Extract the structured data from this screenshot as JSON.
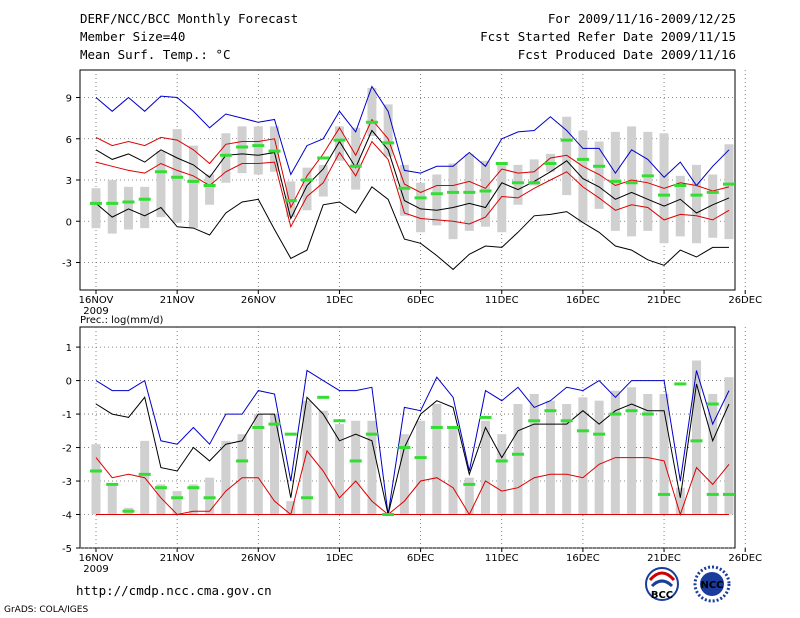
{
  "header": {
    "title": "DERF/NCC/BCC Monthly Forecast",
    "member_size": "Member Size=40",
    "variable": "Mean Surf. Temp.: °C",
    "period": "For 2009/11/16-2009/12/25",
    "start_date": "Fcst Started Refer Date 2009/11/15",
    "produced_date": "Fcst Produced Date 2009/11/16"
  },
  "footer": {
    "url": "http://cmdp.ncc.cma.gov.cn",
    "credit": "GrADS: COLA/IGES",
    "logo_bcc": "BCC",
    "logo_ncc": "NCC"
  },
  "colors": {
    "max_line": "#0000cc",
    "p_line": "#dd0000",
    "median_line": "#000000",
    "bar": "#d0d0d0",
    "marker": "#33dd33",
    "grid": "#666666"
  },
  "chart_data": [
    {
      "type": "line",
      "title": "Mean Surf. Temp.: °C",
      "x_tick_labels": [
        "16NOV",
        "21NOV",
        "26NOV",
        "1DEC",
        "6DEC",
        "11DEC",
        "16DEC",
        "21DEC",
        "26DEC"
      ],
      "year_label": "2009",
      "ylim": [
        -5,
        11
      ],
      "y_ticks": [
        -3,
        0,
        3,
        6,
        9
      ],
      "days": 40,
      "series": [
        {
          "name": "max",
          "values": [
            9,
            8,
            9,
            8,
            9.1,
            9,
            8,
            6.8,
            7.8,
            7.5,
            7.2,
            7.4,
            3.4,
            5.5,
            6,
            8,
            6.5,
            9.8,
            8,
            3.7,
            3.5,
            4,
            4,
            5,
            4,
            6,
            6.5,
            6.6,
            7.6,
            6.6,
            5.3,
            5.3,
            3.5,
            5.2,
            4.5,
            3.2,
            4.3,
            2.6,
            4,
            5.2
          ]
        },
        {
          "name": "upper_p",
          "values": [
            6.1,
            5.5,
            5.8,
            5.5,
            6.1,
            5.9,
            5.2,
            4.2,
            5.6,
            5.8,
            5.8,
            6,
            1,
            3.3,
            4.9,
            6.8,
            4.8,
            7.4,
            6,
            2.7,
            2.1,
            2.6,
            2.6,
            2.9,
            2.4,
            3.8,
            3.5,
            3.6,
            4.6,
            4.8,
            4,
            3.4,
            2.6,
            3,
            2.8,
            2.4,
            2.8,
            2.6,
            2.2,
            2.5
          ]
        },
        {
          "name": "median",
          "values": [
            5.2,
            4.5,
            4.9,
            4.3,
            5.2,
            4.6,
            4.1,
            3.2,
            4.8,
            4.9,
            4.8,
            5,
            0.2,
            2.6,
            3.8,
            5.8,
            3.9,
            6.6,
            5.2,
            1.5,
            0.9,
            0.8,
            1,
            1.3,
            1,
            2.8,
            2.3,
            2.9,
            3.6,
            4.4,
            3.1,
            2.5,
            1.6,
            2.1,
            1.6,
            1.1,
            1.6,
            0.6,
            1.2,
            1.7
          ]
        },
        {
          "name": "lower_p",
          "values": [
            4.3,
            4,
            3.7,
            3.5,
            4.2,
            3.7,
            3.3,
            2.6,
            3.6,
            4.2,
            4.2,
            4.3,
            -0.4,
            1.8,
            2.8,
            5,
            3.3,
            5.8,
            4.5,
            0.6,
            0.2,
            0.1,
            0,
            -0.2,
            0.3,
            1.8,
            1.7,
            2.4,
            3,
            3.6,
            2.5,
            1.7,
            0.8,
            1.2,
            1,
            0.1,
            0.5,
            0.4,
            0.1,
            0.8
          ]
        },
        {
          "name": "min",
          "values": [
            1.3,
            0.3,
            0.9,
            0.4,
            1,
            -0.4,
            -0.5,
            -1,
            0.6,
            1.4,
            1.6,
            -0.6,
            -2.7,
            -2.1,
            1.2,
            1.4,
            0.6,
            2.5,
            1.6,
            -1.3,
            -1.6,
            -2.5,
            -3.5,
            -2.4,
            -1.8,
            -1.9,
            -0.8,
            0.4,
            0.5,
            0.7,
            -0.1,
            -0.8,
            -1.8,
            -2.1,
            -2.8,
            -3.2,
            -2.1,
            -2.6,
            -1.9,
            -1.9
          ]
        }
      ],
      "bars": {
        "low": [
          -0.5,
          -0.9,
          -0.6,
          -0.5,
          0.3,
          -0.1,
          -0.5,
          1.2,
          2.8,
          3.5,
          3.4,
          3.6,
          0.3,
          0.8,
          1.8,
          4.4,
          2.3,
          6.2,
          4.7,
          0.4,
          -0.8,
          -0.3,
          -1.3,
          -0.7,
          -0.4,
          -0.8,
          1.2,
          2.6,
          3.6,
          1.9,
          -0.1,
          0.9,
          -0.7,
          -1.1,
          -0.7,
          -1.6,
          -1.1,
          -1.6,
          -1.2,
          -1.3
        ],
        "high": [
          2.4,
          3,
          2.5,
          2.5,
          5.1,
          6.7,
          5.5,
          3.4,
          6.4,
          6.9,
          6.9,
          6.9,
          2.9,
          3.9,
          4.1,
          6.9,
          6.8,
          9.7,
          8.5,
          4.1,
          2.8,
          3.4,
          4.2,
          4.9,
          4.4,
          4.3,
          4.1,
          4.5,
          4.9,
          7.6,
          6.6,
          5.8,
          6.5,
          6.9,
          6.5,
          6.4,
          3.3,
          4.1,
          3.4,
          5.6
        ]
      },
      "markers": [
        1.3,
        1.3,
        1.4,
        1.6,
        3.6,
        3.2,
        2.9,
        2.6,
        4.8,
        5.4,
        5.5,
        5.1,
        1.5,
        3,
        4.6,
        5.9,
        4,
        7.2,
        5.7,
        2.4,
        1.7,
        2,
        2.1,
        2.1,
        2.2,
        4.2,
        2.8,
        2.8,
        4.2,
        5.9,
        4.5,
        4,
        2.9,
        2.8,
        3.3,
        1.9,
        2.6,
        1.9,
        2.1,
        2.7
      ]
    },
    {
      "type": "line",
      "title": "Prec.: log(mm/d)",
      "x_tick_labels": [
        "16NOV",
        "21NOV",
        "26NOV",
        "1DEC",
        "6DEC",
        "11DEC",
        "16DEC",
        "21DEC",
        "26DEC"
      ],
      "year_label": "2009",
      "ylim": [
        -5,
        1.6
      ],
      "y_ticks": [
        -5,
        -4,
        -3,
        -2,
        -1,
        0,
        1
      ],
      "days": 40,
      "series": [
        {
          "name": "max",
          "values": [
            0,
            -0.3,
            -0.3,
            0,
            -1.8,
            -1.9,
            -1.4,
            -1.9,
            -1,
            -1,
            -0.3,
            -0.4,
            -3,
            0.3,
            0,
            -0.3,
            -0.3,
            -0.2,
            -4,
            -0.8,
            -0.9,
            0.1,
            -0.5,
            -2.7,
            -0.3,
            -0.6,
            -0.2,
            -0.8,
            -0.6,
            -0.2,
            -0.3,
            0,
            -0.5,
            0,
            0,
            0,
            -3,
            0.3,
            -1.3,
            -0.3
          ]
        },
        {
          "name": "median",
          "values": [
            -0.7,
            -1,
            -1.1,
            -0.5,
            -2.6,
            -2.7,
            -2,
            -2.4,
            -1.9,
            -1.8,
            -1,
            -1,
            -3.5,
            -0.5,
            -1,
            -1.8,
            -1.6,
            -1.8,
            -4,
            -2,
            -1,
            -0.6,
            -0.8,
            -2.8,
            -1.4,
            -2.3,
            -1.5,
            -1.3,
            -1.3,
            -1.3,
            -0.9,
            -1.3,
            -0.9,
            -0.7,
            -0.9,
            -0.9,
            -3.5,
            -0.1,
            -1.8,
            -0.7
          ]
        },
        {
          "name": "lower_p",
          "values": [
            -2.3,
            -2.9,
            -2.8,
            -2.9,
            -3.5,
            -4,
            -3.9,
            -3.9,
            -3.3,
            -2.9,
            -2.9,
            -3.6,
            -4,
            -2.1,
            -2.7,
            -3.5,
            -3,
            -3.6,
            -4,
            -3.6,
            -3,
            -2.9,
            -3.2,
            -4,
            -3,
            -3.3,
            -3.2,
            -2.9,
            -2.8,
            -2.8,
            -2.9,
            -2.5,
            -2.3,
            -2.3,
            -2.3,
            -2.4,
            -4,
            -2.6,
            -3.1,
            -2.5
          ]
        },
        {
          "name": "floor",
          "values": [
            -4,
            -4,
            -4,
            -4,
            -4,
            -4,
            -4,
            -4,
            -4,
            -4,
            -4,
            -4,
            -4,
            -4,
            -4,
            -4,
            -4,
            -4,
            -4,
            -4,
            -4,
            -4,
            -4,
            -4,
            -4,
            -4,
            -4,
            -4,
            -4,
            -4,
            -4,
            -4,
            -4,
            -4,
            -4,
            -4,
            -4,
            -4,
            -4,
            -4
          ]
        }
      ],
      "bars": {
        "low": [
          -4,
          -4,
          -4,
          -4,
          -4,
          -4,
          -4,
          -4,
          -4,
          -4,
          -4,
          -4,
          -4,
          -4,
          -4,
          -4,
          -4,
          -4,
          -4,
          -4,
          -4,
          -4,
          -4,
          -4,
          -4,
          -4,
          -4,
          -4,
          -4,
          -4,
          -4,
          -4,
          -4,
          -4,
          -4,
          -4,
          -4,
          -4,
          -4,
          -4
        ],
        "high": [
          -1.9,
          -3.1,
          -3.8,
          -1.8,
          -3.1,
          -3.3,
          -3.1,
          -2.9,
          -1.8,
          -1.6,
          -1,
          -1,
          -3.6,
          -0.6,
          -0.9,
          -1.3,
          -1.2,
          -1.2,
          -4,
          -1.6,
          -1.2,
          -0.7,
          -1.4,
          -2.9,
          -1.2,
          -1.6,
          -0.7,
          -0.4,
          -0.6,
          -0.7,
          -0.5,
          -0.6,
          -0.3,
          -0.2,
          -0.4,
          -0.4,
          -3.2,
          0.6,
          -0.4,
          0.1
        ]
      },
      "markers": [
        -2.7,
        -3.1,
        -3.9,
        -2.8,
        -3.2,
        -3.5,
        -3.2,
        -3.5,
        -2.4,
        -1.4,
        -1.3,
        -1.6,
        -3.5,
        -0.5,
        -1.2,
        -2.4,
        -1.6,
        -4,
        -2,
        -2.3,
        -1.4,
        -1.4,
        -3.1,
        -1.1,
        -2.4,
        -2.2,
        -1.2,
        -0.9,
        -1.2,
        -1.5,
        -1.6,
        -1,
        -0.9,
        -1,
        -3.4,
        -0.1,
        -1.8,
        -0.7,
        -3.4,
        -3.4
      ],
      "marker_days": [
        0,
        1,
        2,
        3,
        4,
        5,
        6,
        7,
        9,
        10,
        11,
        12,
        13,
        14,
        15,
        16,
        17,
        18,
        19,
        20,
        21,
        22,
        23,
        24,
        25,
        26,
        27,
        28,
        29,
        30,
        31,
        32,
        33,
        34,
        35,
        36,
        37,
        38,
        38,
        39
      ]
    }
  ]
}
